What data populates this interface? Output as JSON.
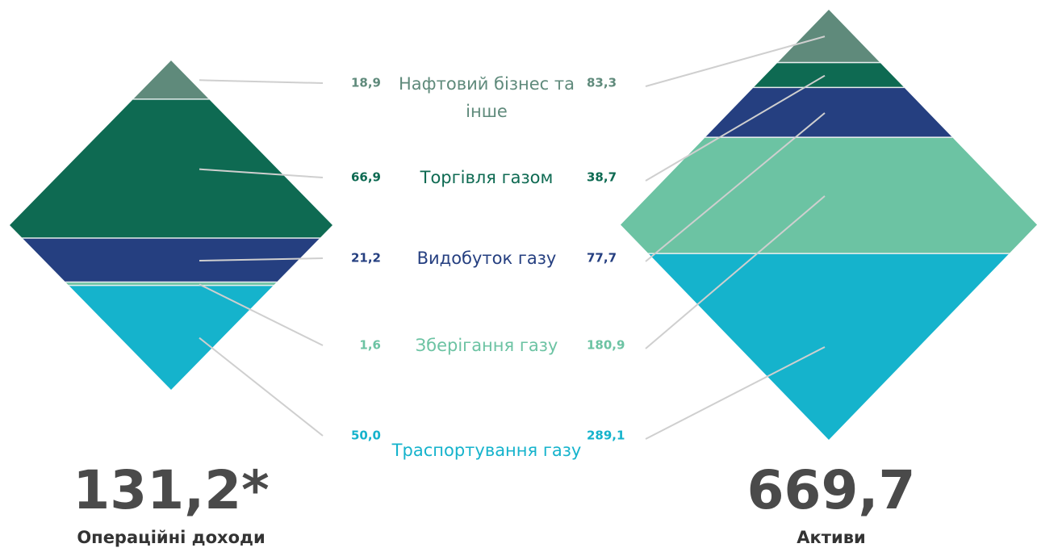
{
  "chart_data": {
    "type": "diamond",
    "categories": [
      "Нафтовий бізнес та інше",
      "Торгівля газом",
      "Видобуток газу",
      "Зберігання газу",
      "Траспортування газу"
    ],
    "colors": [
      "#5f8a7b",
      "#0e6a52",
      "#253f80",
      "#6cc3a3",
      "#15b3cc"
    ],
    "series": [
      {
        "name": "Операційні доходи",
        "total": "131,2*",
        "values": [
          18.9,
          66.9,
          21.2,
          1.6,
          50.0
        ],
        "value_labels": [
          "18,9",
          "66,9",
          "21,2",
          "1,6",
          "50,0"
        ]
      },
      {
        "name": "Активи",
        "total": "669,7",
        "values": [
          83.3,
          38.7,
          77.7,
          180.9,
          289.1
        ],
        "value_labels": [
          "83,3",
          "38,7",
          "77,7",
          "180,9",
          "289,1"
        ]
      }
    ]
  }
}
